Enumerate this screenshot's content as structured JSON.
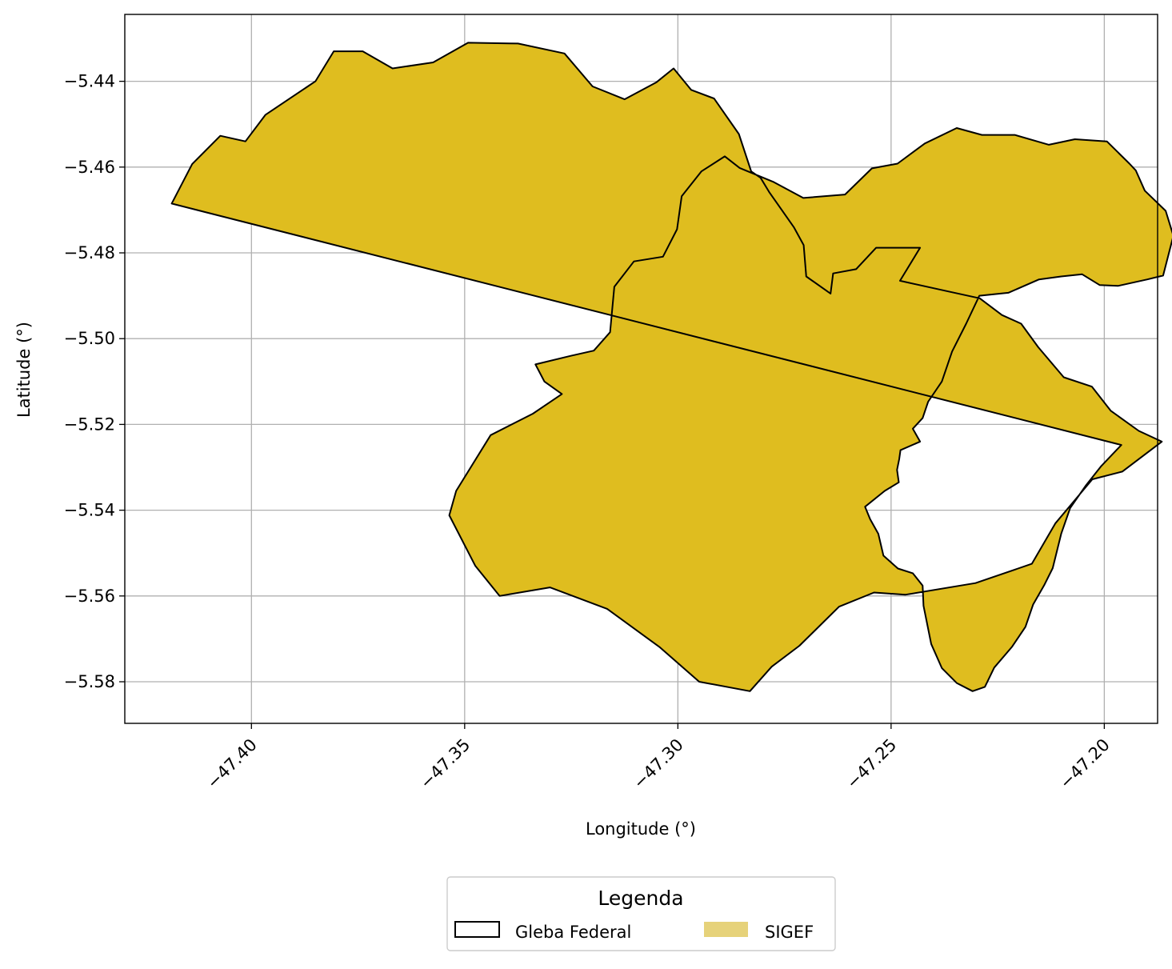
{
  "chart_data": {
    "type": "map",
    "xlabel": "Longitude (°)",
    "ylabel": "Latitude (°)",
    "xlim": [
      -47.4297,
      -47.1875
    ],
    "ylim": [
      -5.5897,
      -5.4244
    ],
    "x_ticks": [
      -47.4,
      -47.35,
      -47.3,
      -47.25,
      -47.2
    ],
    "x_tick_labels": [
      "−47.40",
      "−47.35",
      "−47.30",
      "−47.25",
      "−47.20"
    ],
    "y_ticks": [
      -5.44,
      -5.46,
      -5.48,
      -5.5,
      -5.52,
      -5.54,
      -5.56,
      -5.58
    ],
    "y_tick_labels": [
      "−5.44",
      "−5.46",
      "−5.48",
      "−5.50",
      "−5.52",
      "−5.54",
      "−5.56",
      "−5.58"
    ],
    "grid": true,
    "legend": {
      "title": "Legenda",
      "placement": "bottom-center",
      "entries": [
        {
          "label": "Gleba Federal",
          "style": "outline",
          "edge_color": "#000000",
          "face_color": "none"
        },
        {
          "label": "SIGEF",
          "style": "fill",
          "face_color": "#e6d27a"
        }
      ]
    },
    "colors": {
      "gleba_fill": "#dfbd1f",
      "gleba_edge": "#000000",
      "sigef_edge": "#1a1aff",
      "grid": "#b0b0b0"
    },
    "gleba_federal_polygons": [
      [
        [
          -47.4187,
          -5.4685
        ],
        [
          -47.4139,
          -5.4593
        ],
        [
          -47.4073,
          -5.4527
        ],
        [
          -47.4014,
          -5.454
        ],
        [
          -47.3967,
          -5.4478
        ],
        [
          -47.385,
          -5.44
        ],
        [
          -47.3807,
          -5.433
        ],
        [
          -47.3739,
          -5.433
        ],
        [
          -47.3669,
          -5.437
        ],
        [
          -47.3574,
          -5.4356
        ],
        [
          -47.3492,
          -5.431
        ],
        [
          -47.3375,
          -5.4312
        ],
        [
          -47.3266,
          -5.4335
        ],
        [
          -47.32,
          -5.4412
        ],
        [
          -47.3125,
          -5.4442
        ],
        [
          -47.305,
          -5.4402
        ],
        [
          -47.301,
          -5.437
        ],
        [
          -47.2969,
          -5.442
        ],
        [
          -47.2915,
          -5.444
        ],
        [
          -47.2857,
          -5.4523
        ],
        [
          -47.2828,
          -5.461
        ],
        [
          -47.2806,
          -5.4625
        ],
        [
          -47.2786,
          -5.4658
        ],
        [
          -47.2728,
          -5.474
        ],
        [
          -47.2705,
          -5.4782
        ],
        [
          -47.2699,
          -5.4855
        ],
        [
          -47.2642,
          -5.4895
        ],
        [
          -47.2636,
          -5.4848
        ],
        [
          -47.2582,
          -5.4838
        ],
        [
          -47.2535,
          -5.4788
        ],
        [
          -47.2432,
          -5.4788
        ],
        [
          -47.2479,
          -5.4865
        ],
        [
          -47.2365,
          -5.489
        ],
        [
          -47.2292,
          -5.4906
        ],
        [
          -47.224,
          -5.4945
        ],
        [
          -47.2195,
          -5.4965
        ],
        [
          -47.2155,
          -5.502
        ],
        [
          -47.2095,
          -5.509
        ],
        [
          -47.2029,
          -5.5112
        ],
        [
          -47.1985,
          -5.5168
        ],
        [
          -47.1919,
          -5.5215
        ],
        [
          -47.1865,
          -5.524
        ],
        [
          -47.1958,
          -5.531
        ],
        [
          -47.2028,
          -5.5328
        ],
        [
          -47.2115,
          -5.5431
        ],
        [
          -47.217,
          -5.5525
        ],
        [
          -47.2302,
          -5.557
        ],
        [
          -47.2466,
          -5.5597
        ],
        [
          -47.254,
          -5.5592
        ],
        [
          -47.2622,
          -5.5625
        ],
        [
          -47.2715,
          -5.5716
        ],
        [
          -47.278,
          -5.5765
        ],
        [
          -47.2831,
          -5.5822
        ],
        [
          -47.295,
          -5.58
        ],
        [
          -47.3042,
          -5.572
        ],
        [
          -47.3166,
          -5.563
        ],
        [
          -47.33,
          -5.558
        ],
        [
          -47.3418,
          -5.56
        ],
        [
          -47.3475,
          -5.553
        ],
        [
          -47.3536,
          -5.5412
        ],
        [
          -47.352,
          -5.5355
        ],
        [
          -47.3439,
          -5.5225
        ],
        [
          -47.334,
          -5.5175
        ],
        [
          -47.3272,
          -5.5129
        ],
        [
          -47.3313,
          -5.51
        ],
        [
          -47.3334,
          -5.506
        ],
        [
          -47.3251,
          -5.504
        ],
        [
          -47.3197,
          -5.5028
        ],
        [
          -47.3159,
          -5.4985
        ],
        [
          -47.3149,
          -5.4879
        ],
        [
          -47.3103,
          -5.482
        ],
        [
          -47.3035,
          -5.4809
        ],
        [
          -47.3002,
          -5.4745
        ],
        [
          -47.2991,
          -5.4668
        ],
        [
          -47.2945,
          -5.461
        ],
        [
          -47.289,
          -5.4575
        ],
        [
          -47.2855,
          -5.4602
        ],
        [
          -47.2775,
          -5.4635
        ],
        [
          -47.2706,
          -5.4672
        ],
        [
          -47.2608,
          -5.4664
        ],
        [
          -47.2545,
          -5.4603
        ],
        [
          -47.2485,
          -5.4592
        ],
        [
          -47.2421,
          -5.4545
        ],
        [
          -47.2346,
          -5.4509
        ],
        [
          -47.2287,
          -5.4525
        ],
        [
          -47.221,
          -5.4525
        ],
        [
          -47.213,
          -5.4548
        ],
        [
          -47.2069,
          -5.4535
        ],
        [
          -47.1994,
          -5.454
        ],
        [
          -47.1941,
          -5.4592
        ],
        [
          -47.1926,
          -5.4608
        ],
        [
          -47.1905,
          -5.4655
        ],
        [
          -47.1856,
          -5.4702
        ],
        [
          -47.1838,
          -5.476
        ],
        [
          -47.1862,
          -5.4853
        ],
        [
          -47.1899,
          -5.4862
        ],
        [
          -47.1968,
          -5.4877
        ],
        [
          -47.2011,
          -5.4875
        ],
        [
          -47.2052,
          -5.485
        ],
        [
          -47.2101,
          -5.4855
        ],
        [
          -47.2153,
          -5.4862
        ],
        [
          -47.2225,
          -5.4893
        ],
        [
          -47.2293,
          -5.49
        ],
        [
          -47.2324,
          -5.4965
        ],
        [
          -47.2357,
          -5.503
        ],
        [
          -47.2381,
          -5.51
        ],
        [
          -47.2413,
          -5.5147
        ],
        [
          -47.2426,
          -5.5185
        ],
        [
          -47.2449,
          -5.521
        ],
        [
          -47.2432,
          -5.524
        ],
        [
          -47.2478,
          -5.526
        ],
        [
          -47.2481,
          -5.5281
        ],
        [
          -47.2486,
          -5.5306
        ],
        [
          -47.2482,
          -5.5335
        ],
        [
          -47.2515,
          -5.5355
        ],
        [
          -47.2561,
          -5.5392
        ],
        [
          -47.2549,
          -5.5421
        ],
        [
          -47.253,
          -5.5455
        ],
        [
          -47.2518,
          -5.5506
        ],
        [
          -47.2484,
          -5.5536
        ],
        [
          -47.2449,
          -5.5547
        ],
        [
          -47.2426,
          -5.5576
        ],
        [
          -47.2424,
          -5.5623
        ],
        [
          -47.2406,
          -5.5712
        ],
        [
          -47.2381,
          -5.5768
        ],
        [
          -47.2346,
          -5.5803
        ],
        [
          -47.2309,
          -5.5822
        ],
        [
          -47.228,
          -5.5812
        ],
        [
          -47.2258,
          -5.5767
        ],
        [
          -47.2216,
          -5.5718
        ],
        [
          -47.2185,
          -5.5672
        ],
        [
          -47.2167,
          -5.562
        ],
        [
          -47.2141,
          -5.5575
        ],
        [
          -47.2121,
          -5.5535
        ],
        [
          -47.2101,
          -5.5455
        ],
        [
          -47.208,
          -5.5395
        ],
        [
          -47.2043,
          -5.5342
        ],
        [
          -47.2007,
          -5.5297
        ],
        [
          -47.196,
          -5.5248
        ]
      ]
    ]
  }
}
